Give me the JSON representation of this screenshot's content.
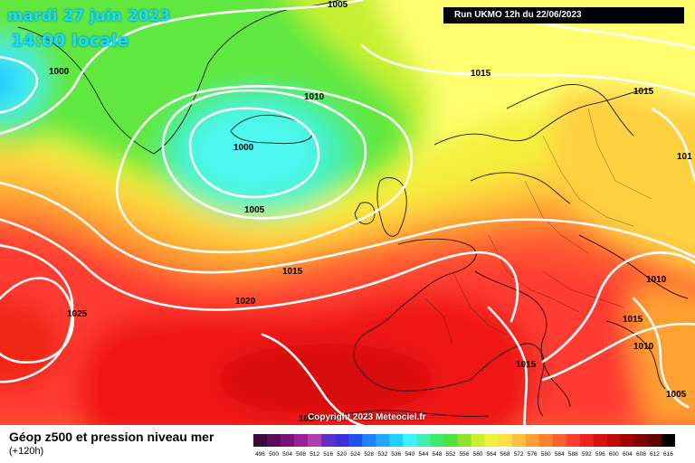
{
  "header": {
    "date_text": "mardi 27 juin 2023",
    "time_text": "14:00 locale",
    "run_text": "Run UKMO 12h du 22/06/2023"
  },
  "map": {
    "copyright": "Copyright 2023 Meteociel.fr",
    "pressure_labels": [
      {
        "text": "1005",
        "key": "1005"
      },
      {
        "text": "1000",
        "key": "1000"
      },
      {
        "text": "1015",
        "key": "1015"
      },
      {
        "text": "1010",
        "key": "1010"
      },
      {
        "text": "1015",
        "key": "1015"
      },
      {
        "text": "1000",
        "key": "1000"
      },
      {
        "text": "101",
        "key": "101"
      },
      {
        "text": "1005",
        "key": "1005"
      },
      {
        "text": "1015",
        "key": "1015"
      },
      {
        "text": "1020",
        "key": "1020"
      },
      {
        "text": "1025",
        "key": "1025"
      },
      {
        "text": "1010",
        "key": "1010"
      },
      {
        "text": "1015",
        "key": "1015"
      },
      {
        "text": "1010",
        "key": "1010"
      },
      {
        "text": "1015",
        "key": "1015"
      },
      {
        "text": "1005",
        "key": "1005"
      },
      {
        "text": "101",
        "key": "101"
      }
    ]
  },
  "legend": {
    "title": "Géop z500 et pression niveau mer",
    "subtitle": "(+120h)",
    "scale": [
      {
        "label": "496",
        "color": "#3a0a3a"
      },
      {
        "label": "500",
        "color": "#5a0a5a"
      },
      {
        "label": "504",
        "color": "#7a107a"
      },
      {
        "label": "508",
        "color": "#9a209a"
      },
      {
        "label": "512",
        "color": "#b040b0"
      },
      {
        "label": "516",
        "color": "#6030c0"
      },
      {
        "label": "520",
        "color": "#3a30d8"
      },
      {
        "label": "524",
        "color": "#2050f0"
      },
      {
        "label": "528",
        "color": "#2080ff"
      },
      {
        "label": "532",
        "color": "#20a8ff"
      },
      {
        "label": "536",
        "color": "#20d0ff"
      },
      {
        "label": "540",
        "color": "#40f0ff"
      },
      {
        "label": "544",
        "color": "#40f0b0"
      },
      {
        "label": "548",
        "color": "#40e870"
      },
      {
        "label": "552",
        "color": "#50e040"
      },
      {
        "label": "556",
        "color": "#90e030"
      },
      {
        "label": "560",
        "color": "#c8f030"
      },
      {
        "label": "564",
        "color": "#f0f040"
      },
      {
        "label": "568",
        "color": "#ffe040"
      },
      {
        "label": "572",
        "color": "#ffc040"
      },
      {
        "label": "576",
        "color": "#ffa030"
      },
      {
        "label": "580",
        "color": "#ff8030"
      },
      {
        "label": "584",
        "color": "#ff6030"
      },
      {
        "label": "588",
        "color": "#ff4030"
      },
      {
        "label": "592",
        "color": "#f02020"
      },
      {
        "label": "596",
        "color": "#d81010"
      },
      {
        "label": "600",
        "color": "#c00808"
      },
      {
        "label": "604",
        "color": "#a00000"
      },
      {
        "label": "608",
        "color": "#800000"
      },
      {
        "label": "612",
        "color": "#600000"
      },
      {
        "label": "616",
        "color": "#000000"
      }
    ]
  }
}
